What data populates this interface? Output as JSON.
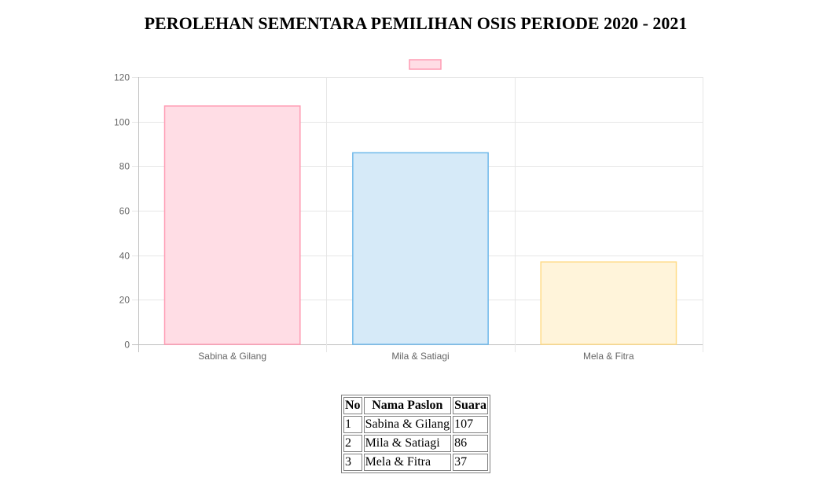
{
  "page": {
    "title": "PEROLEHAN SEMENTARA PEMILIHAN OSIS PERIODE 2020 - 2021"
  },
  "chart_data": {
    "type": "bar",
    "categories": [
      "Sabina & Gilang",
      "Mila & Satiagi",
      "Mela & Fitra"
    ],
    "values": [
      107,
      86,
      37
    ],
    "ylim": [
      0,
      120
    ],
    "yticks": [
      0,
      20,
      40,
      60,
      80,
      100,
      120
    ],
    "grid": true,
    "legend": {
      "placement": "top-center",
      "label": ""
    },
    "bar_fill_colors": [
      "#ffdde5",
      "#d6eaf8",
      "#fff4da"
    ],
    "bar_border_colors": [
      "#ff9bb3",
      "#6fb9ea",
      "#ffdb87"
    ],
    "legend_fill_color": "#ffdde5",
    "legend_border_color": "#ff9bb3",
    "title": "",
    "xlabel": "",
    "ylabel": ""
  },
  "table": {
    "headers": [
      "No",
      "Nama Paslon",
      "Suara"
    ],
    "rows": [
      [
        "1",
        "Sabina & Gilang",
        "107"
      ],
      [
        "2",
        "Mila & Satiagi",
        "86"
      ],
      [
        "3",
        "Mela & Fitra",
        "37"
      ]
    ]
  }
}
